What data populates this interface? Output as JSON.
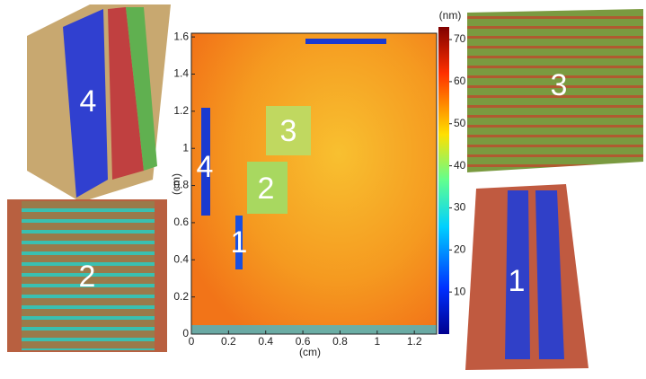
{
  "chart_data": {
    "type": "heatmap",
    "xlabel": "(cm)",
    "ylabel": "(cm)",
    "xlim": [
      0,
      1.32
    ],
    "xticks": [
      0,
      0.2,
      0.4,
      0.6,
      0.8,
      1,
      1.2
    ],
    "ylim": [
      0,
      1.62
    ],
    "yticks": [
      0,
      0.2,
      0.4,
      0.6,
      0.8,
      1,
      1.2,
      1.4,
      1.6
    ],
    "colorbar": {
      "label": "(nm)",
      "lim": [
        0,
        73
      ],
      "ticks": [
        10,
        20,
        30,
        40,
        50,
        60,
        70
      ]
    },
    "annotations": [
      "1",
      "2",
      "3",
      "4"
    ],
    "panels": [
      "4",
      "2",
      "3",
      "1"
    ]
  }
}
